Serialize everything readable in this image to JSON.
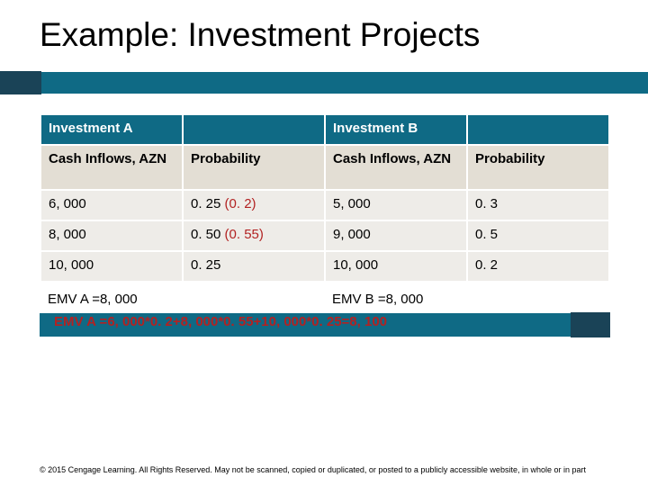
{
  "title": "Example: Investment Projects",
  "colors": {
    "bar": "#0f6a85",
    "bar_accent": "#1a4357",
    "header_bg": "#0f6a85",
    "header_fg": "#ffffff",
    "subheader_bg": "#e3ded4",
    "data_bg": "#eeece8",
    "paren": "#b22222",
    "text": "#000000",
    "page_bg": "#ffffff"
  },
  "table": {
    "header": {
      "a": "Investment A",
      "b": "Investment B"
    },
    "subheader": {
      "cash_a": "Cash Inflows, AZN",
      "prob_a": "Probability",
      "cash_b": "Cash Inflows, AZN",
      "prob_b": "Probability"
    },
    "rows": [
      {
        "cash_a": "6, 000",
        "prob_a": "0. 25 ",
        "prob_a_paren": "(0. 2)",
        "cash_b": "5, 000",
        "prob_b": "0. 3"
      },
      {
        "cash_a": "8, 000",
        "prob_a": "0. 50 ",
        "prob_a_paren": "(0. 55)",
        "cash_b": "9, 000",
        "prob_b": "0. 5"
      },
      {
        "cash_a": "10, 000",
        "prob_a": "0. 25",
        "prob_a_paren": "",
        "cash_b": "10, 000",
        "prob_b": "0. 2"
      }
    ],
    "footer": {
      "emv_a": "EMV A =8, 000",
      "emv_b": "EMV B =8, 000"
    }
  },
  "formula": "EMV A =6, 000*0. 2+8, 000*0. 55+10, 000*0. 25=8, 100",
  "copyright": "© 2015 Cengage Learning. All Rights Reserved. May not be scanned, copied or duplicated, or posted to a publicly accessible website, in whole or in part"
}
